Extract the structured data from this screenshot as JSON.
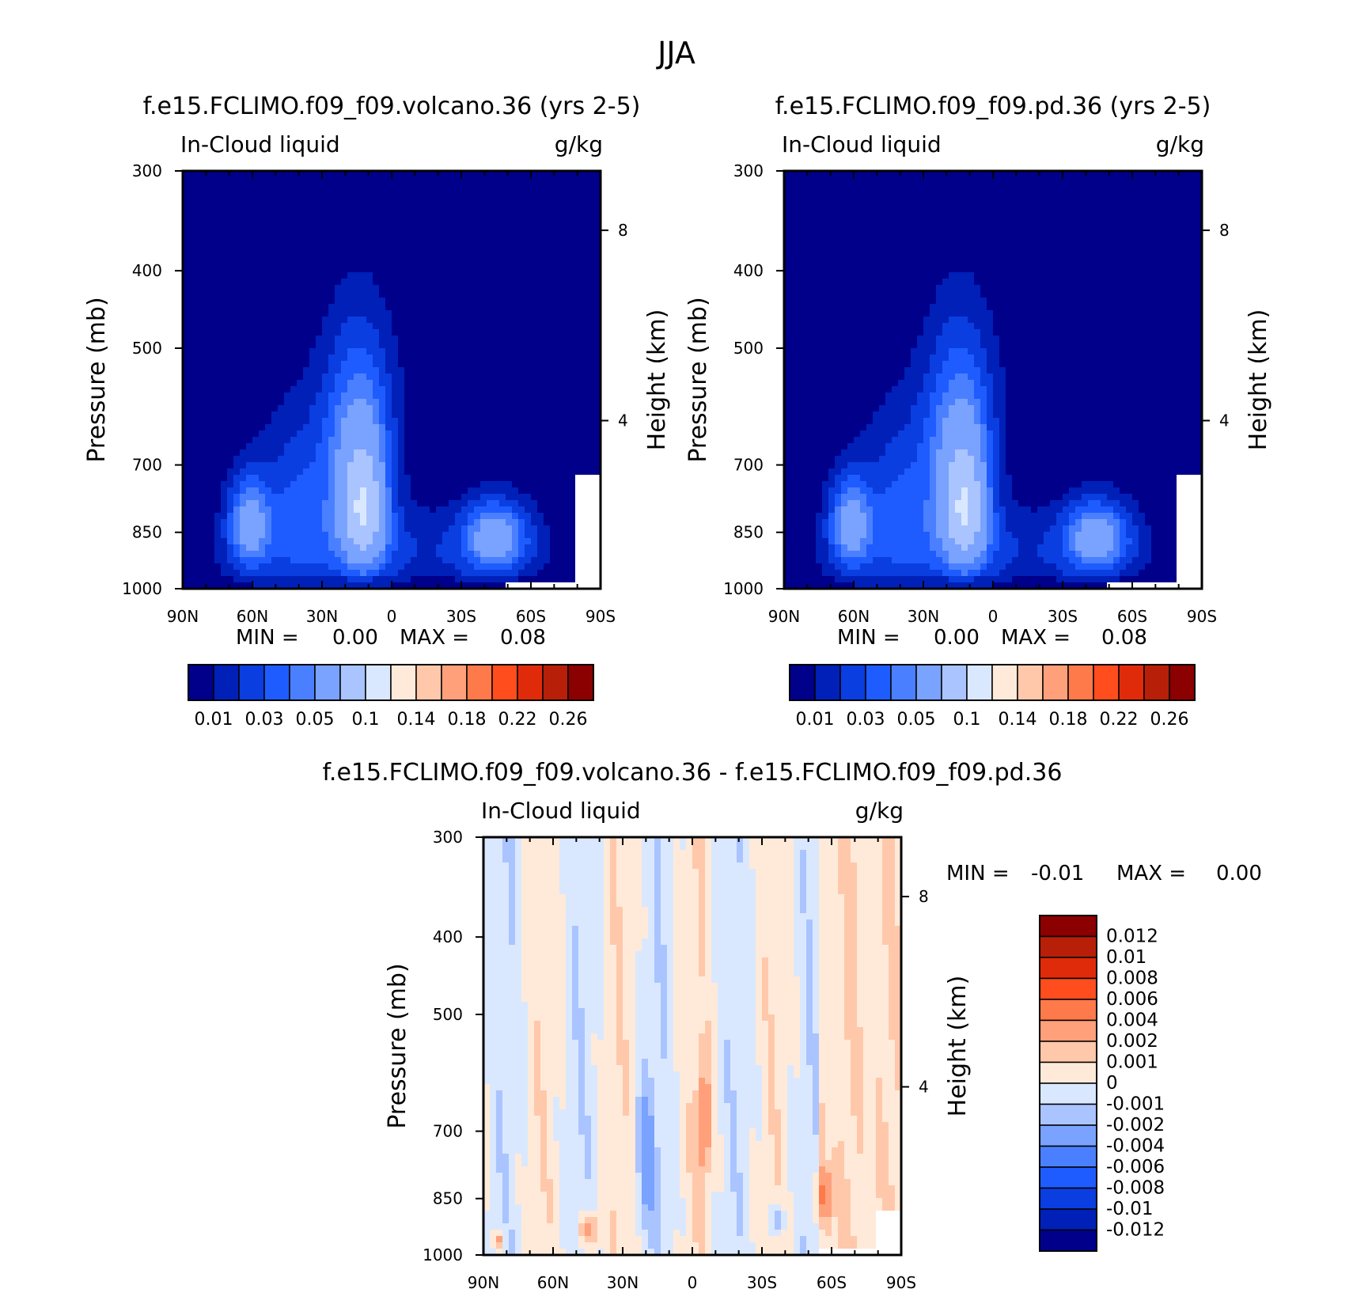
{
  "title": "JJA",
  "colors": {
    "seq": [
      "#00008b",
      "#0020b8",
      "#0a3ee0",
      "#1e5cff",
      "#4a80ff",
      "#7aa2ff",
      "#aac4ff",
      "#d9e8ff",
      "#ffead9",
      "#ffc8aa",
      "#ffa07a",
      "#ff7a4a",
      "#ff4d1e",
      "#e02b0a",
      "#b81f08",
      "#8b0000"
    ],
    "diff": [
      "#00008b",
      "#0020b8",
      "#0a3ee0",
      "#1e5cff",
      "#4a80ff",
      "#7aa2ff",
      "#aac4ff",
      "#d9e8ff",
      "#ffead9",
      "#ffc8aa",
      "#ffa07a",
      "#ff7a4a",
      "#ff4d1e",
      "#e02b0a",
      "#b81f08",
      "#8b0000"
    ]
  },
  "chart_data": [
    {
      "type": "contour",
      "title": "f.e15.FCLIMO.f09_f09.volcano.36 (yrs 2-5)",
      "left_label": "In-Cloud liquid",
      "right_label": "g/kg",
      "ylabel": "Pressure (mb)",
      "y2label": "Height (km)",
      "x_ticks": [
        "90N",
        "60N",
        "30N",
        "0",
        "30S",
        "60S",
        "90S"
      ],
      "x_values": [
        90,
        60,
        30,
        0,
        -30,
        -60,
        -90
      ],
      "y_ticks": [
        "300",
        "400",
        "500",
        "700",
        "850",
        "1000"
      ],
      "y_values": [
        300,
        400,
        500,
        700,
        850,
        1000
      ],
      "ylim": [
        300,
        1000
      ],
      "y2_ticks": [
        "8",
        "4"
      ],
      "minmax": {
        "min_label": "MIN =",
        "min": "0.00",
        "max_label": "MAX =",
        "max": "0.08"
      },
      "colorbar_labels": [
        "0.01",
        "0.03",
        "0.05",
        "0.1",
        "0.14",
        "0.18",
        "0.22",
        "0.26"
      ],
      "centers": [
        {
          "lat": 13,
          "p": 780,
          "v": 0.075
        },
        {
          "lat": 63,
          "p": 820,
          "v": 0.05
        },
        {
          "lat": -45,
          "p": 865,
          "v": 0.06
        }
      ]
    },
    {
      "type": "contour",
      "title": "f.e15.FCLIMO.f09_f09.pd.36 (yrs 2-5)",
      "left_label": "In-Cloud liquid",
      "right_label": "g/kg",
      "ylabel": "Pressure (mb)",
      "y2label": "Height (km)",
      "x_ticks": [
        "90N",
        "60N",
        "30N",
        "0",
        "30S",
        "60S",
        "90S"
      ],
      "x_values": [
        90,
        60,
        30,
        0,
        -30,
        -60,
        -90
      ],
      "y_ticks": [
        "300",
        "400",
        "500",
        "700",
        "850",
        "1000"
      ],
      "y_values": [
        300,
        400,
        500,
        700,
        850,
        1000
      ],
      "ylim": [
        300,
        1000
      ],
      "y2_ticks": [
        "8",
        "4"
      ],
      "minmax": {
        "min_label": "MIN =",
        "min": "0.00",
        "max_label": "MAX =",
        "max": "0.08"
      },
      "colorbar_labels": [
        "0.01",
        "0.03",
        "0.05",
        "0.1",
        "0.14",
        "0.18",
        "0.22",
        "0.26"
      ],
      "centers": [
        {
          "lat": 13,
          "p": 780,
          "v": 0.075
        },
        {
          "lat": 63,
          "p": 820,
          "v": 0.05
        },
        {
          "lat": -45,
          "p": 865,
          "v": 0.06
        }
      ]
    },
    {
      "type": "contour",
      "title": "f.e15.FCLIMO.f09_f09.volcano.36 - f.e15.FCLIMO.f09_f09.pd.36",
      "left_label": "In-Cloud liquid",
      "right_label": "g/kg",
      "ylabel": "Pressure (mb)",
      "y2label": "Height (km)",
      "x_ticks": [
        "90N",
        "60N",
        "30N",
        "0",
        "30S",
        "60S",
        "90S"
      ],
      "x_values": [
        90,
        60,
        30,
        0,
        -30,
        -60,
        -90
      ],
      "y_ticks": [
        "300",
        "400",
        "500",
        "700",
        "850",
        "1000"
      ],
      "y_values": [
        300,
        400,
        500,
        700,
        850,
        1000
      ],
      "ylim": [
        300,
        1000
      ],
      "y2_ticks": [
        "8",
        "4"
      ],
      "minmax": {
        "min_label": "MIN =",
        "min": "-0.01",
        "max_label": "MAX =",
        "max": "0.00"
      },
      "colorbar_labels": [
        "0.012",
        "0.01",
        "0.008",
        "0.006",
        "0.004",
        "0.002",
        "0.001",
        "0",
        "-0.001",
        "-0.002",
        "-0.004",
        "-0.006",
        "-0.008",
        "-0.01",
        "-0.012"
      ],
      "warm_bands": [
        {
          "lat": 44,
          "p": 920,
          "v": 0.003
        },
        {
          "lat": -5,
          "p": 700,
          "v": 0.004
        },
        {
          "lat": -57,
          "p": 850,
          "v": 0.004
        },
        {
          "lat": 83,
          "p": 960,
          "v": 0.003
        }
      ]
    }
  ]
}
